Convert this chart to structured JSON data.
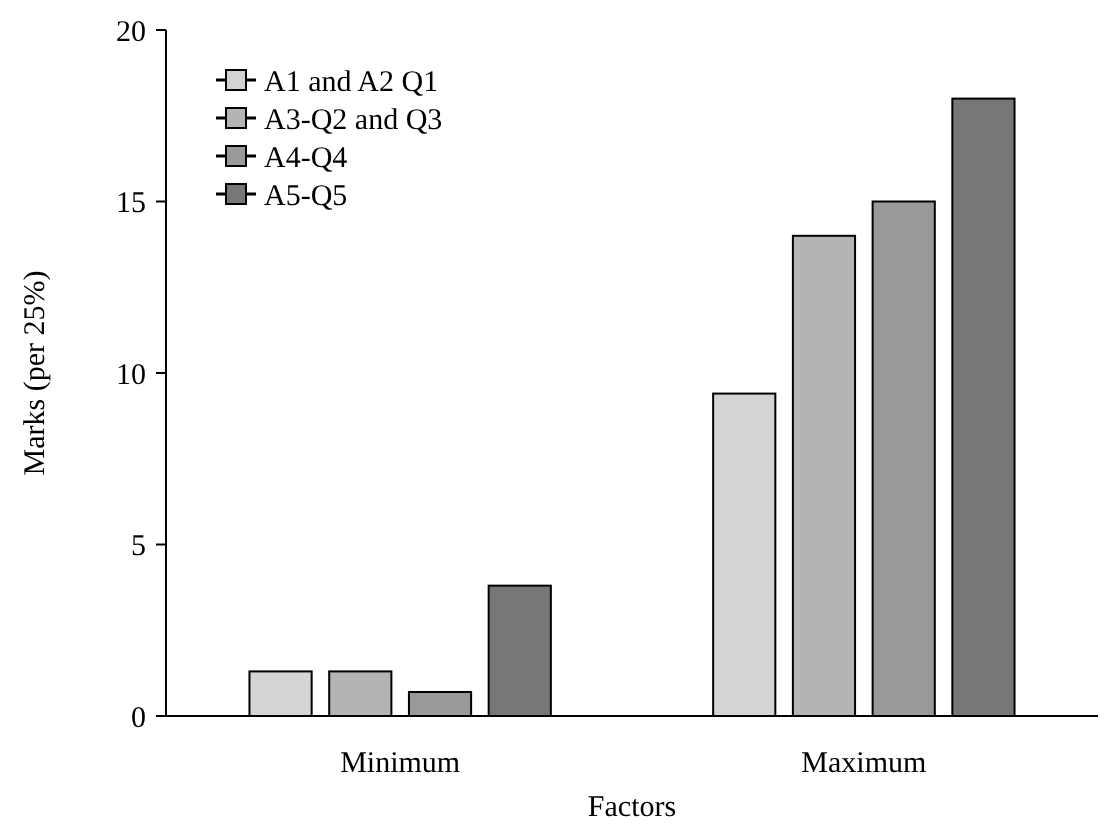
{
  "chart_data": {
    "type": "bar",
    "xlabel": "Factors",
    "ylabel": "Marks (per 25%)",
    "categories": [
      "Minimum",
      "Maximum"
    ],
    "series": [
      {
        "name": "A1 and A2 Q1",
        "color": "#d4d4d4",
        "values": [
          1.3,
          9.4
        ]
      },
      {
        "name": "A3-Q2 and Q3",
        "color": "#b4b4b4",
        "values": [
          1.3,
          14
        ]
      },
      {
        "name": "A4-Q4",
        "color": "#999999",
        "values": [
          0.7,
          15
        ]
      },
      {
        "name": "A5-Q5",
        "color": "#777777",
        "values": [
          3.8,
          18
        ]
      }
    ],
    "ylim": [
      0,
      20
    ],
    "yticks": [
      0,
      5,
      10,
      15,
      20
    ],
    "legend": "top left"
  }
}
